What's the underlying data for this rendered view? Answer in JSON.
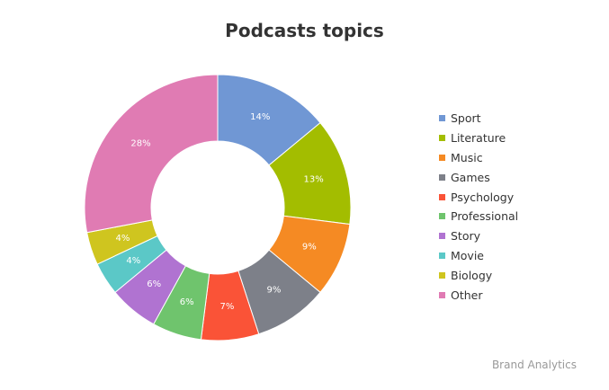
{
  "chart_data": {
    "type": "pie",
    "title": "Podcasts topics",
    "donut": true,
    "legend_position": "right",
    "slices": [
      {
        "label": "Sport",
        "value": 14,
        "display": "14%",
        "color": "#7097d4"
      },
      {
        "label": "Literature",
        "value": 13,
        "display": "13%",
        "color": "#a3bd00"
      },
      {
        "label": "Music",
        "value": 9,
        "display": "9%",
        "color": "#f58a23"
      },
      {
        "label": "Games",
        "value": 9,
        "display": "9%",
        "color": "#7d8089"
      },
      {
        "label": "Psychology",
        "value": 7,
        "display": "7%",
        "color": "#fa5337"
      },
      {
        "label": "Professional",
        "value": 6,
        "display": "6%",
        "color": "#6fc46d"
      },
      {
        "label": "Story",
        "value": 6,
        "display": "6%",
        "color": "#b073d1"
      },
      {
        "label": "Movie",
        "value": 4,
        "display": "4%",
        "color": "#5bc8c7"
      },
      {
        "label": "Biology",
        "value": 4,
        "display": "4%",
        "color": "#cfc51f"
      },
      {
        "label": "Other",
        "value": 28,
        "display": "28%",
        "color": "#e07bb3"
      }
    ]
  },
  "credit": "Brand Analytics"
}
